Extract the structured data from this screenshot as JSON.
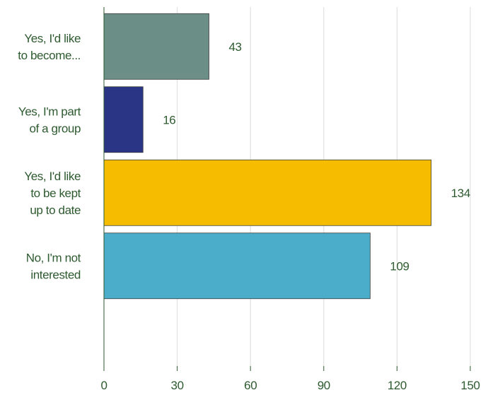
{
  "chart_data": {
    "type": "bar",
    "orientation": "horizontal",
    "categories": [
      [
        "Yes, I'd like",
        "to become..."
      ],
      [
        "Yes, I'm part",
        "of a group"
      ],
      [
        "Yes, I'd like",
        "to be kept",
        "up to date"
      ],
      [
        "No, I'm not",
        "interested"
      ]
    ],
    "values": [
      43,
      16,
      134,
      109
    ],
    "colors": [
      "#6b8e87",
      "#2b3585",
      "#f6bd00",
      "#4badc9"
    ],
    "x_ticks": [
      0,
      30,
      60,
      90,
      120,
      150
    ],
    "xlim": [
      0,
      150
    ],
    "grid": true,
    "title": "",
    "xlabel": "",
    "ylabel": "",
    "text_color": "#2e5a30",
    "grid_color": "#dcdcdc",
    "axis_color": "#2e5a30"
  }
}
